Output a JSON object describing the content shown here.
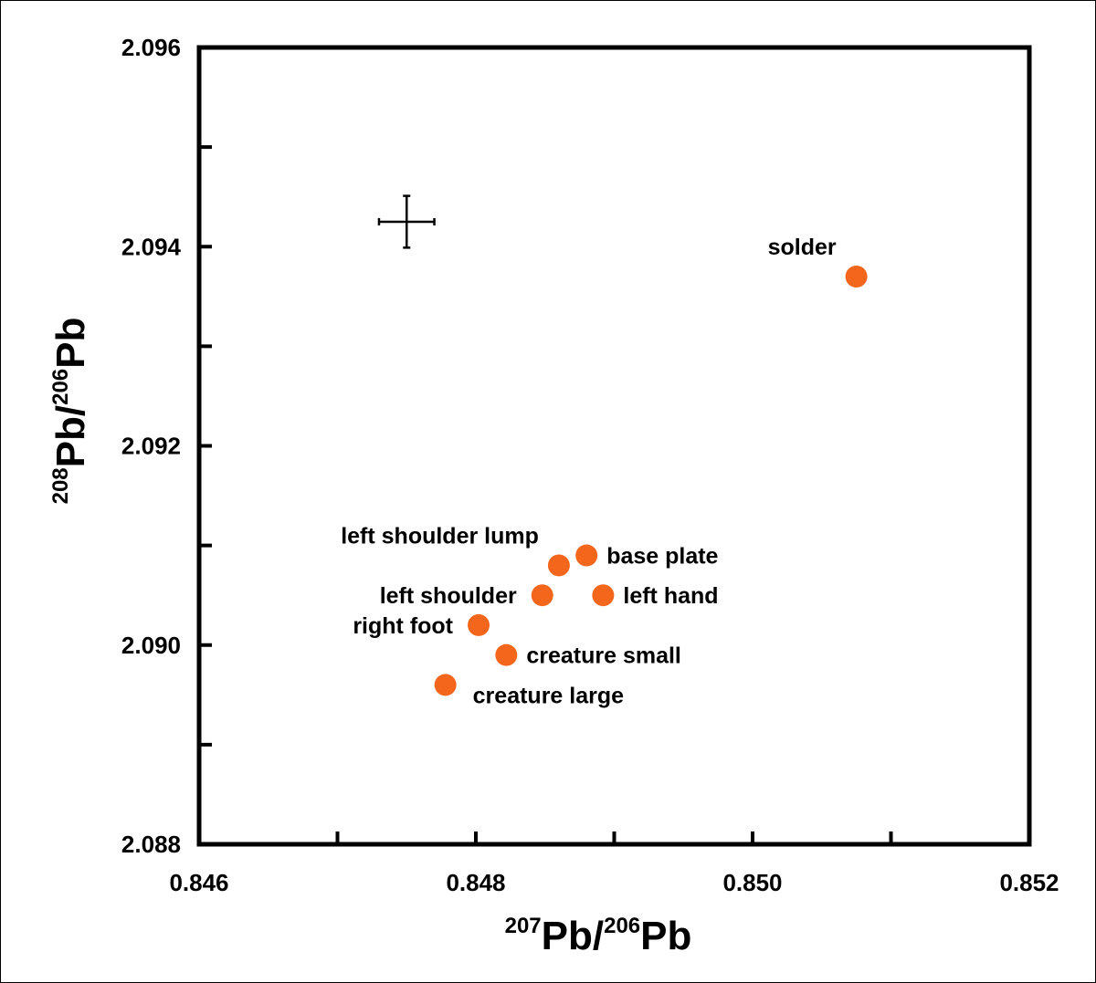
{
  "chart_data": {
    "type": "scatter",
    "xlim": [
      0.846,
      0.852
    ],
    "ylim": [
      2.088,
      2.096
    ],
    "x_ticks": [
      "0.846",
      "0.848",
      "0.850",
      "0.852"
    ],
    "y_ticks": [
      "2.088",
      "2.090",
      "2.092",
      "2.094",
      "2.096"
    ],
    "xlabel": {
      "sup1": "207",
      "base1": "Pb/",
      "sup2": "206",
      "base2": "Pb"
    },
    "ylabel": {
      "sup1": "208",
      "base1": "Pb/",
      "sup2": "206",
      "base2": "Pb"
    },
    "marker_color": "#f4661b",
    "grid": false,
    "points": [
      {
        "label": "solder",
        "x": 0.85075,
        "y": 2.0937,
        "label_pos": "above-left"
      },
      {
        "label": "left shoulder lump",
        "x": 0.8486,
        "y": 2.0908,
        "label_pos": "above-left"
      },
      {
        "label": "base plate",
        "x": 0.8488,
        "y": 2.0909,
        "label_pos": "right"
      },
      {
        "label": "left shoulder",
        "x": 0.84848,
        "y": 2.0905,
        "label_pos": "left"
      },
      {
        "label": "left hand",
        "x": 0.84892,
        "y": 2.0905,
        "label_pos": "right"
      },
      {
        "label": "right foot",
        "x": 0.84802,
        "y": 2.0902,
        "label_pos": "left"
      },
      {
        "label": "creature small",
        "x": 0.84822,
        "y": 2.0899,
        "label_pos": "right"
      },
      {
        "label": "creature large",
        "x": 0.84778,
        "y": 2.0896,
        "label_pos": "below-right"
      }
    ],
    "error_bar": {
      "x": 0.8475,
      "y": 2.09425,
      "x_err": 0.0002,
      "y_err": 0.00026
    }
  }
}
